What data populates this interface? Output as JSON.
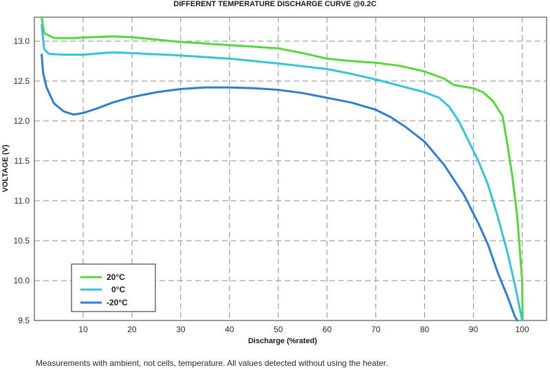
{
  "chart_data": {
    "type": "line",
    "title": "DIFFERENT TEMPERATURE DISCHARGE CURVE @0.2C",
    "xlabel": "Discharge (%rated)",
    "ylabel": "VOLTAGE (V)",
    "xlim": [
      0,
      105
    ],
    "ylim": [
      9.5,
      13.3
    ],
    "xticks": [
      10,
      20,
      30,
      40,
      50,
      60,
      70,
      80,
      90,
      100
    ],
    "yticks": [
      9.5,
      10.0,
      10.5,
      11.0,
      11.5,
      12.0,
      12.5,
      13.0
    ],
    "ytick_labels": [
      "9.5",
      "10.0",
      "10.5",
      "11.0",
      "11.5",
      "12.0",
      "12.5",
      "13.0"
    ],
    "grid": true,
    "legend_position": "bottom-left",
    "series": [
      {
        "name": "20°C",
        "color": "#55d63c",
        "points": [
          [
            1.5,
            13.3
          ],
          [
            2,
            13.1
          ],
          [
            4,
            13.04
          ],
          [
            8,
            13.04
          ],
          [
            12,
            13.05
          ],
          [
            16,
            13.06
          ],
          [
            20,
            13.05
          ],
          [
            25,
            13.02
          ],
          [
            30,
            12.99
          ],
          [
            35,
            12.97
          ],
          [
            40,
            12.95
          ],
          [
            45,
            12.93
          ],
          [
            50,
            12.91
          ],
          [
            55,
            12.85
          ],
          [
            60,
            12.78
          ],
          [
            65,
            12.75
          ],
          [
            70,
            12.73
          ],
          [
            75,
            12.69
          ],
          [
            80,
            12.62
          ],
          [
            84,
            12.53
          ],
          [
            86,
            12.45
          ],
          [
            88,
            12.43
          ],
          [
            90,
            12.41
          ],
          [
            92,
            12.36
          ],
          [
            94,
            12.25
          ],
          [
            96,
            12.06
          ],
          [
            97,
            11.7
          ],
          [
            98,
            11.3
          ],
          [
            99,
            10.8
          ],
          [
            100,
            10.0
          ],
          [
            100.1,
            9.5
          ]
        ]
      },
      {
        "name": "0°C",
        "color": "#35c3d8",
        "points": [
          [
            1.5,
            13.2
          ],
          [
            2,
            12.9
          ],
          [
            3,
            12.84
          ],
          [
            6,
            12.83
          ],
          [
            10,
            12.83
          ],
          [
            16,
            12.86
          ],
          [
            20,
            12.85
          ],
          [
            30,
            12.82
          ],
          [
            40,
            12.78
          ],
          [
            50,
            12.72
          ],
          [
            60,
            12.65
          ],
          [
            65,
            12.59
          ],
          [
            70,
            12.52
          ],
          [
            75,
            12.44
          ],
          [
            80,
            12.36
          ],
          [
            83,
            12.29
          ],
          [
            85,
            12.18
          ],
          [
            87,
            12.0
          ],
          [
            89,
            11.75
          ],
          [
            91,
            11.5
          ],
          [
            93,
            11.2
          ],
          [
            95,
            10.8
          ],
          [
            97,
            10.35
          ],
          [
            98.5,
            9.95
          ],
          [
            99.5,
            9.65
          ],
          [
            100,
            9.5
          ]
        ]
      },
      {
        "name": "-20°C",
        "color": "#2e7dd1",
        "points": [
          [
            1.5,
            12.83
          ],
          [
            1.8,
            12.6
          ],
          [
            2.5,
            12.42
          ],
          [
            4,
            12.22
          ],
          [
            6,
            12.12
          ],
          [
            8,
            12.08
          ],
          [
            10,
            12.1
          ],
          [
            13,
            12.16
          ],
          [
            16,
            12.23
          ],
          [
            20,
            12.3
          ],
          [
            25,
            12.36
          ],
          [
            30,
            12.4
          ],
          [
            35,
            12.42
          ],
          [
            40,
            12.42
          ],
          [
            45,
            12.41
          ],
          [
            50,
            12.39
          ],
          [
            55,
            12.35
          ],
          [
            60,
            12.29
          ],
          [
            65,
            12.23
          ],
          [
            70,
            12.14
          ],
          [
            73,
            12.05
          ],
          [
            76,
            11.93
          ],
          [
            80,
            11.74
          ],
          [
            84,
            11.45
          ],
          [
            88,
            11.08
          ],
          [
            91,
            10.72
          ],
          [
            93,
            10.45
          ],
          [
            95,
            10.1
          ],
          [
            97,
            9.8
          ],
          [
            98.5,
            9.55
          ],
          [
            99,
            9.5
          ]
        ]
      }
    ]
  },
  "footnote": "Measurements with ambient, not cells, temperature. All values detected without using the heater."
}
